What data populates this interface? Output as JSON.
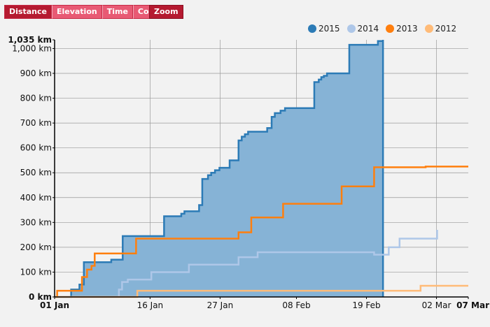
{
  "toolbar": {
    "buttons": [
      {
        "label": "Distance",
        "active": true
      },
      {
        "label": "Elevation",
        "active": false
      },
      {
        "label": "Time",
        "active": false
      },
      {
        "label": "Count",
        "active": false
      }
    ],
    "zoom_label": "Zoom"
  },
  "colors": {
    "y2015": "#2c7bb6",
    "y2015_fill": "#86b3d6",
    "y2014": "#aec7e8",
    "y2013": "#ff7f0e",
    "y2012": "#ffbb78",
    "grid": "#999999",
    "axis": "#000000"
  },
  "chart_data": {
    "type": "area",
    "xlabel": "",
    "ylabel": "",
    "x_ticks": [
      "01 Jan",
      "16 Jan",
      "27 Jan",
      "08 Feb",
      "19 Feb",
      "02 Mar",
      "07 Mar"
    ],
    "x_tick_days": [
      0,
      15,
      26,
      38,
      49,
      60,
      65
    ],
    "y_ticks": [
      "0 km",
      "100 km",
      "200 km",
      "300 km",
      "400 km",
      "500 km",
      "600 km",
      "700 km",
      "800 km",
      "900 km",
      "1,000 km",
      "1,035 km"
    ],
    "y_tick_values": [
      0,
      100,
      200,
      300,
      400,
      500,
      600,
      700,
      800,
      900,
      1000,
      1035
    ],
    "xlim": [
      0,
      65
    ],
    "ylim": [
      0,
      1035
    ],
    "grid": true,
    "legend_position": "top-right",
    "series": [
      {
        "name": "2015",
        "filled": true,
        "points": [
          [
            0,
            0
          ],
          [
            2.6,
            30
          ],
          [
            3.9,
            50
          ],
          [
            4.6,
            140
          ],
          [
            8.9,
            150
          ],
          [
            10.7,
            245
          ],
          [
            15.1,
            245
          ],
          [
            17.2,
            325
          ],
          [
            19.9,
            335
          ],
          [
            20.4,
            345
          ],
          [
            22.7,
            370
          ],
          [
            23.2,
            475
          ],
          [
            24.1,
            490
          ],
          [
            24.6,
            500
          ],
          [
            25.2,
            510
          ],
          [
            25.9,
            520
          ],
          [
            27.5,
            550
          ],
          [
            28.9,
            630
          ],
          [
            29.4,
            645
          ],
          [
            29.9,
            655
          ],
          [
            30.4,
            665
          ],
          [
            33.4,
            680
          ],
          [
            34.1,
            725
          ],
          [
            34.6,
            740
          ],
          [
            35.5,
            750
          ],
          [
            36.2,
            760
          ],
          [
            40.8,
            865
          ],
          [
            41.5,
            875
          ],
          [
            41.9,
            885
          ],
          [
            42.3,
            890
          ],
          [
            42.8,
            900
          ],
          [
            46.3,
            1015
          ],
          [
            50.8,
            1030
          ],
          [
            51.6,
            1035
          ]
        ]
      },
      {
        "name": "2014",
        "points": [
          [
            0,
            0
          ],
          [
            10.1,
            30
          ],
          [
            10.6,
            60
          ],
          [
            11.5,
            70
          ],
          [
            15.2,
            100
          ],
          [
            21.1,
            130
          ],
          [
            28.9,
            160
          ],
          [
            31.9,
            180
          ],
          [
            50.2,
            170
          ],
          [
            52.5,
            200
          ],
          [
            54.2,
            235
          ],
          [
            59.4,
            235
          ],
          [
            60.1,
            270
          ]
        ]
      },
      {
        "name": "2013",
        "points": [
          [
            0,
            0
          ],
          [
            0.4,
            25
          ],
          [
            2.4,
            25
          ],
          [
            4.3,
            80
          ],
          [
            5.1,
            110
          ],
          [
            5.8,
            125
          ],
          [
            6.3,
            175
          ],
          [
            10.6,
            175
          ],
          [
            12.8,
            235
          ],
          [
            25.9,
            235
          ],
          [
            28.9,
            260
          ],
          [
            30.9,
            320
          ],
          [
            34.1,
            320
          ],
          [
            35.9,
            375
          ],
          [
            43.8,
            375
          ],
          [
            45.1,
            445
          ],
          [
            49.2,
            445
          ],
          [
            50.2,
            522
          ],
          [
            57.0,
            522
          ],
          [
            58.3,
            525
          ],
          [
            65,
            525
          ]
        ]
      },
      {
        "name": "2012",
        "points": [
          [
            0,
            0
          ],
          [
            12.6,
            0
          ],
          [
            13.0,
            25
          ],
          [
            55.8,
            25
          ],
          [
            57.5,
            45
          ],
          [
            65,
            45
          ]
        ]
      }
    ]
  }
}
